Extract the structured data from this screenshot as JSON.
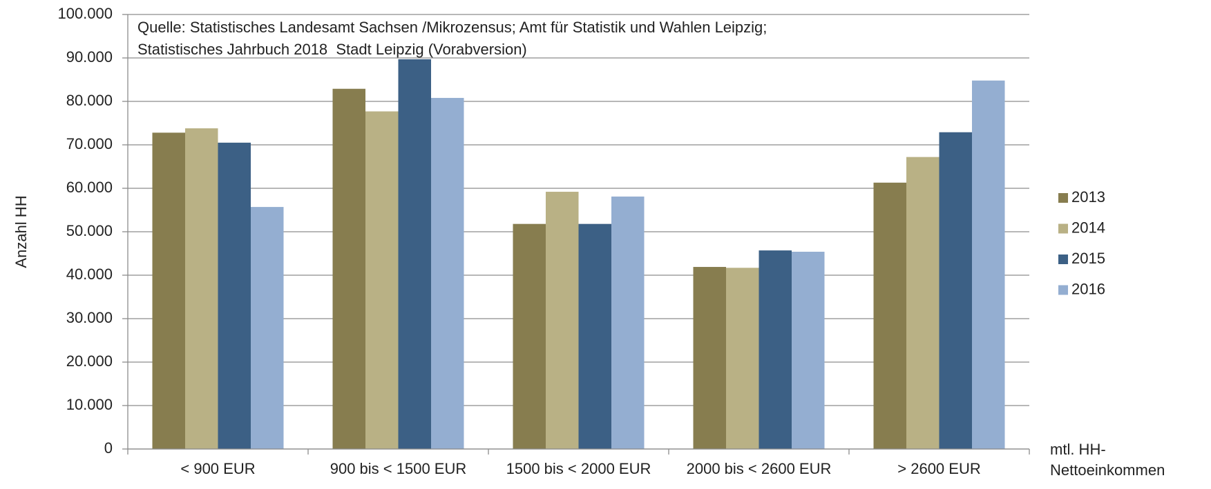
{
  "chart_data": {
    "type": "bar",
    "source": [
      "Quelle: Statistisches Landesamt Sachsen /Mikrozensus; Amt für Statistik und Wahlen Leipzig;",
      "Statistisches Jahrbuch 2018  Stadt Leipzig (Vorabversion)"
    ],
    "y_label": "Anzahl HH",
    "x_label": [
      "mtl. HH-",
      "Nettoeinkommen"
    ],
    "categories": [
      "< 900 EUR",
      "900 bis < 1500 EUR",
      "1500 bis < 2000 EUR",
      "2000 bis < 2600 EUR",
      "> 2600 EUR"
    ],
    "series": [
      {
        "name": "2013",
        "color": "#877d4f",
        "values": [
          72800,
          82900,
          51800,
          41900,
          61300
        ]
      },
      {
        "name": "2014",
        "color": "#b9b185",
        "values": [
          73800,
          77700,
          59200,
          41700,
          67200
        ]
      },
      {
        "name": "2015",
        "color": "#3c6085",
        "values": [
          70500,
          89700,
          51800,
          45700,
          72900
        ]
      },
      {
        "name": "2016",
        "color": "#94aed1",
        "values": [
          55700,
          80800,
          58100,
          45400,
          84800
        ]
      }
    ],
    "ylim": [
      0,
      100000
    ],
    "yticks": [
      0,
      {
        "value": 10000,
        "label": "10.000"
      },
      {
        "value": 20000,
        "label": "20.000"
      },
      {
        "value": 30000,
        "label": "30.000"
      },
      {
        "value": 40000,
        "label": "40.000"
      },
      {
        "value": 50000,
        "label": "50.000"
      },
      {
        "value": 60000,
        "label": "60.000"
      },
      {
        "value": 70000,
        "label": "70.000"
      },
      {
        "value": 80000,
        "label": "80.000"
      },
      {
        "value": 90000,
        "label": "90.000"
      },
      {
        "value": 100000,
        "label": "100.000"
      }
    ],
    "grid": true,
    "legend": "right"
  }
}
